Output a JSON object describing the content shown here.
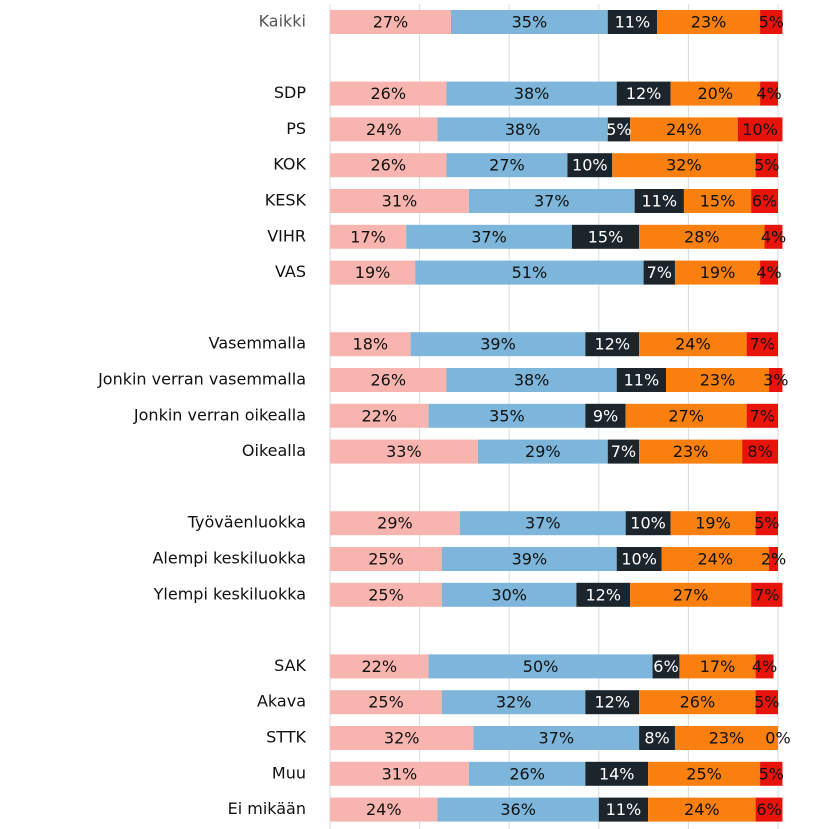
{
  "chart_data": {
    "type": "stacked_barh",
    "categories": [
      "Kaikki",
      null,
      "SDP",
      "PS",
      "KOK",
      "KESK",
      "VIHR",
      "VAS",
      null,
      "Vasemmalla",
      "Jonkin verran vasemmalla",
      "Jonkin verran oikealla",
      "Oikealla",
      null,
      "Työväenluokka",
      "Alempi keskiluokka",
      "Ylempi keskiluokka",
      null,
      "SAK",
      "Akava",
      "STTK",
      "Muu",
      "Ei mikään"
    ],
    "series": [
      {
        "color": "#f8b5b0",
        "values": [
          27,
          null,
          26,
          24,
          26,
          31,
          17,
          19,
          null,
          18,
          26,
          22,
          33,
          null,
          29,
          25,
          25,
          null,
          22,
          25,
          32,
          31,
          24
        ],
        "value_labels": [
          "27%",
          null,
          "26%",
          "24%",
          "26%",
          "31%",
          "17%",
          "19%",
          null,
          "18%",
          "26%",
          "22%",
          "33%",
          null,
          "29%",
          "25%",
          "25%",
          null,
          "22%",
          "25%",
          "32%",
          "31%",
          "24%"
        ]
      },
      {
        "color": "#7db6da",
        "values": [
          35,
          null,
          38,
          38,
          27,
          37,
          37,
          51,
          null,
          39,
          38,
          35,
          29,
          null,
          37,
          39,
          30,
          null,
          50,
          32,
          37,
          26,
          36
        ],
        "value_labels": [
          "35%",
          null,
          "38%",
          "38%",
          "27%",
          "37%",
          "37%",
          "51%",
          null,
          "39%",
          "38%",
          "35%",
          "29%",
          null,
          "37%",
          "39%",
          "30%",
          null,
          "50%",
          "32%",
          "37%",
          "26%",
          "36%"
        ]
      },
      {
        "color": "#1c252c",
        "values": [
          11,
          null,
          12,
          5,
          10,
          11,
          15,
          7,
          null,
          12,
          11,
          9,
          7,
          null,
          10,
          10,
          12,
          null,
          6,
          12,
          8,
          14,
          11
        ],
        "value_labels": [
          "11%",
          null,
          "12%",
          "5%",
          "10%",
          "11%",
          "15%",
          "7%",
          null,
          "12%",
          "11%",
          "9%",
          "7%",
          null,
          "10%",
          "10%",
          "12%",
          null,
          "6%",
          "12%",
          "8%",
          "14%",
          "11%"
        ]
      },
      {
        "color": "#f97f0f",
        "values": [
          23,
          null,
          20,
          24,
          32,
          15,
          28,
          19,
          null,
          24,
          23,
          27,
          23,
          null,
          19,
          24,
          27,
          null,
          17,
          26,
          23,
          25,
          24
        ],
        "value_labels": [
          "23%",
          null,
          "20%",
          "24%",
          "32%",
          "15%",
          "28%",
          "19%",
          null,
          "24%",
          "23%",
          "27%",
          "23%",
          null,
          "19%",
          "24%",
          "27%",
          null,
          "17%",
          "26%",
          "23%",
          "25%",
          "24%"
        ]
      },
      {
        "color": "#e8140c",
        "values": [
          5,
          null,
          4,
          10,
          5,
          6,
          4,
          4,
          null,
          7,
          3,
          7,
          8,
          null,
          5,
          2,
          7,
          null,
          4,
          5,
          0,
          5,
          6
        ],
        "value_labels": [
          "5%",
          null,
          "4%",
          "10%",
          "5%",
          "6%",
          "4%",
          "4%",
          null,
          "7%",
          "3%",
          "7%",
          "8%",
          null,
          "5%",
          "2%",
          "7%",
          null,
          "4%",
          "5%",
          "0%",
          "5%",
          "6%"
        ]
      }
    ],
    "xlim": [
      0,
      100
    ],
    "xticks": [
      0,
      20,
      40,
      60,
      80,
      100
    ],
    "grid": true
  }
}
